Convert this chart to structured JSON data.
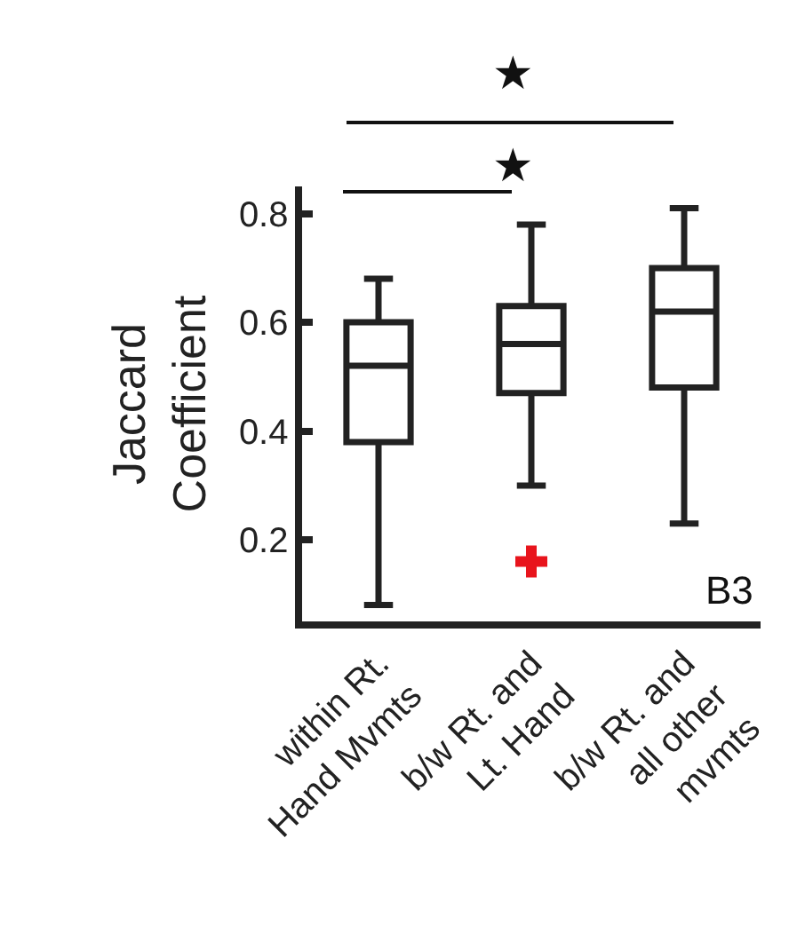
{
  "chart_data": {
    "type": "box",
    "ylabel": "Jaccard\nCoefficient",
    "categories": [
      "within Rt.\nHand Mvmts",
      "b/w Rt. and\nLt. Hand",
      "b/w Rt. and\nall other\nmvmts"
    ],
    "boxes": [
      {
        "low": 0.08,
        "q1": 0.38,
        "median": 0.52,
        "q3": 0.6,
        "high": 0.68
      },
      {
        "low": 0.3,
        "q1": 0.47,
        "median": 0.56,
        "q3": 0.63,
        "high": 0.78,
        "outliers": [
          0.16
        ]
      },
      {
        "low": 0.23,
        "q1": 0.48,
        "median": 0.62,
        "q3": 0.7,
        "high": 0.81
      }
    ],
    "color": "#222222",
    "ylim": [
      0.05,
      0.85
    ],
    "yticks": [
      0.2,
      0.4,
      0.6,
      0.8
    ],
    "annotations": [
      "★",
      "★",
      "B3"
    ],
    "grid": false
  }
}
